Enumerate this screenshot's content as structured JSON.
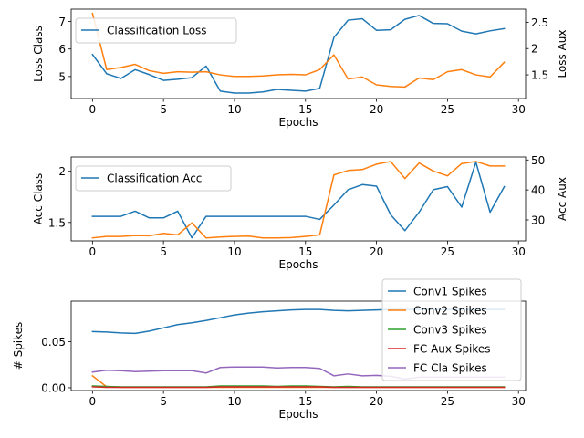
{
  "chart_data": [
    {
      "type": "line",
      "xlabel": "Epochs",
      "ylabel": "Loss Class",
      "ylabel_right": "Loss Aux",
      "xlim": [
        -1.5,
        30.5
      ],
      "ylim": [
        4.2,
        7.45
      ],
      "ylim_right": [
        1.05,
        2.75
      ],
      "xticks": [
        0,
        5,
        10,
        15,
        20,
        25,
        30
      ],
      "yticks": [
        5,
        6,
        7
      ],
      "yticks_right": [
        1.5,
        2.0,
        2.5
      ],
      "legend": "upper-left",
      "grid": false,
      "series": [
        {
          "name": "Classification Loss",
          "axis": "left",
          "color": "#1f77b4",
          "x": [
            0,
            1,
            2,
            3,
            4,
            5,
            6,
            7,
            8,
            9,
            10,
            11,
            12,
            13,
            14,
            15,
            16,
            17,
            18,
            19,
            20,
            21,
            22,
            23,
            24,
            25,
            26,
            27,
            28,
            29
          ],
          "values": [
            5.8,
            5.1,
            4.93,
            5.25,
            5.07,
            4.86,
            4.9,
            4.96,
            5.38,
            4.47,
            4.4,
            4.4,
            4.44,
            4.53,
            4.5,
            4.47,
            4.57,
            6.42,
            7.05,
            7.1,
            6.68,
            6.7,
            7.08,
            7.22,
            6.93,
            6.92,
            6.65,
            6.55,
            6.66,
            6.74
          ]
        },
        {
          "name": "",
          "axis": "right",
          "color": "#ff7f0e",
          "x": [
            0,
            1,
            2,
            3,
            4,
            5,
            6,
            7,
            8,
            9,
            10,
            11,
            12,
            13,
            14,
            15,
            16,
            17,
            18,
            19,
            20,
            21,
            22,
            23,
            24,
            25,
            26,
            27,
            28,
            29
          ],
          "values": [
            2.67,
            1.6,
            1.64,
            1.7,
            1.58,
            1.53,
            1.56,
            1.55,
            1.56,
            1.5,
            1.47,
            1.47,
            1.48,
            1.5,
            1.51,
            1.5,
            1.6,
            1.88,
            1.42,
            1.46,
            1.31,
            1.28,
            1.27,
            1.44,
            1.41,
            1.56,
            1.6,
            1.5,
            1.46,
            1.74
          ]
        }
      ]
    },
    {
      "type": "line",
      "xlabel": "Epochs",
      "ylabel": "Acc Class",
      "ylabel_right": "Acc Aux",
      "xlim": [
        -1.5,
        30.5
      ],
      "ylim": [
        1.32,
        2.14
      ],
      "ylim_right": [
        23,
        51
      ],
      "xticks": [
        0,
        5,
        10,
        15,
        20,
        25,
        30
      ],
      "yticks": [
        1.5,
        2.0
      ],
      "yticks_right": [
        30,
        40,
        50
      ],
      "legend": "upper-left",
      "grid": false,
      "series": [
        {
          "name": "Classification Acc",
          "axis": "left",
          "color": "#1f77b4",
          "x": [
            0,
            1,
            2,
            3,
            4,
            5,
            6,
            7,
            8,
            9,
            10,
            11,
            12,
            13,
            14,
            15,
            16,
            17,
            18,
            19,
            20,
            21,
            22,
            23,
            24,
            25,
            26,
            27,
            28,
            29
          ],
          "values": [
            1.56,
            1.56,
            1.56,
            1.61,
            1.545,
            1.545,
            1.61,
            1.35,
            1.56,
            1.56,
            1.56,
            1.56,
            1.56,
            1.56,
            1.56,
            1.56,
            1.53,
            1.67,
            1.82,
            1.87,
            1.855,
            1.575,
            1.42,
            1.6,
            1.82,
            1.85,
            1.65,
            2.09,
            1.6,
            1.85
          ]
        },
        {
          "name": "",
          "axis": "right",
          "color": "#ff7f0e",
          "x": [
            0,
            1,
            2,
            3,
            4,
            5,
            6,
            7,
            8,
            9,
            10,
            11,
            12,
            13,
            14,
            15,
            16,
            17,
            18,
            19,
            20,
            21,
            22,
            23,
            24,
            25,
            26,
            27,
            28,
            29
          ],
          "values": [
            24,
            24.5,
            24.5,
            24.8,
            24.7,
            25.5,
            25,
            29,
            24,
            24.3,
            24.5,
            24.6,
            24,
            24,
            24.1,
            24.5,
            25,
            45,
            46.5,
            46.8,
            48.6,
            49.5,
            43.8,
            49,
            46.3,
            44.7,
            48.8,
            49.5,
            48,
            48
          ]
        }
      ]
    },
    {
      "type": "line",
      "xlabel": "Epochs",
      "ylabel": "# Spikes",
      "xlim": [
        -1.5,
        30.5
      ],
      "ylim": [
        -0.003,
        0.094
      ],
      "xticks": [
        0,
        5,
        10,
        15,
        20,
        25,
        30
      ],
      "yticks": [
        0.0,
        0.05
      ],
      "ytick_labels": [
        "0.00",
        "0.05"
      ],
      "legend": "upper-right",
      "grid": false,
      "series": [
        {
          "name": "Conv1 Spikes",
          "color": "#1f77b4",
          "x": [
            0,
            1,
            2,
            3,
            4,
            5,
            6,
            7,
            8,
            9,
            10,
            11,
            12,
            13,
            14,
            15,
            16,
            17,
            18,
            19,
            20,
            21,
            22,
            23,
            24,
            25,
            26,
            27,
            28,
            29
          ],
          "values": [
            0.061,
            0.0605,
            0.0595,
            0.059,
            0.0615,
            0.065,
            0.0685,
            0.0705,
            0.073,
            0.076,
            0.079,
            0.081,
            0.0825,
            0.0835,
            0.0845,
            0.085,
            0.085,
            0.084,
            0.0835,
            0.084,
            0.0845,
            0.085,
            0.085,
            0.085,
            0.085,
            0.085,
            0.085,
            0.085,
            0.085,
            0.085
          ]
        },
        {
          "name": "Conv2 Spikes",
          "color": "#ff7f0e",
          "x": [
            0,
            1,
            2,
            3,
            4,
            5,
            6,
            7,
            8,
            9,
            10,
            11,
            12,
            13,
            14,
            15,
            16,
            17,
            18,
            19,
            20,
            21,
            22,
            23,
            24,
            25,
            26,
            27,
            28,
            29
          ],
          "values": [
            0.013,
            0.001,
            0.0005,
            0.0005,
            0.0005,
            0.0005,
            0.0005,
            0.0005,
            0.0005,
            0.0005,
            0.0005,
            0.0005,
            0.0005,
            0.0005,
            0.0005,
            0.0005,
            0.0005,
            0.0005,
            0.0005,
            0.0005,
            0.0005,
            0.0005,
            0.0005,
            0.0005,
            0.0005,
            0.0005,
            0.0005,
            0.0005,
            0.0005,
            0.0005
          ]
        },
        {
          "name": "Conv3 Spikes",
          "color": "#2ca02c",
          "x": [
            0,
            1,
            2,
            3,
            4,
            5,
            6,
            7,
            8,
            9,
            10,
            11,
            12,
            13,
            14,
            15,
            16,
            17,
            18,
            19,
            20,
            21,
            22,
            23,
            24,
            25,
            26,
            27,
            28,
            29
          ],
          "values": [
            0.002,
            0.0015,
            0.001,
            0.001,
            0.001,
            0.001,
            0.001,
            0.001,
            0.001,
            0.002,
            0.002,
            0.002,
            0.002,
            0.0015,
            0.002,
            0.002,
            0.0015,
            0.001,
            0.0015,
            0.001,
            0.001,
            0.001,
            0.001,
            0.001,
            0.001,
            0.001,
            0.001,
            0.001,
            0.001,
            0.001
          ]
        },
        {
          "name": "FC Aux Spikes",
          "color": "#d62728",
          "x": [
            0,
            1,
            2,
            3,
            4,
            5,
            6,
            7,
            8,
            9,
            10,
            11,
            12,
            13,
            14,
            15,
            16,
            17,
            18,
            19,
            20,
            21,
            22,
            23,
            24,
            25,
            26,
            27,
            28,
            29
          ],
          "values": [
            0.001,
            0.0005,
            0.0005,
            0.0005,
            0.0005,
            0.0005,
            0.0005,
            0.0005,
            0.0005,
            0.001,
            0.001,
            0.001,
            0.001,
            0.001,
            0.001,
            0.001,
            0.001,
            0.0005,
            0.0005,
            0.0005,
            0.0005,
            0.0005,
            0.0005,
            0.0005,
            0.0005,
            0.0005,
            0.0005,
            0.0005,
            0.0005,
            0.0005
          ]
        },
        {
          "name": "FC Cla Spikes",
          "color": "#9467bd",
          "x": [
            0,
            1,
            2,
            3,
            4,
            5,
            6,
            7,
            8,
            9,
            10,
            11,
            12,
            13,
            14,
            15,
            16,
            17,
            18,
            19,
            20,
            21,
            22,
            23,
            24,
            25,
            26,
            27,
            28,
            29
          ],
          "values": [
            0.017,
            0.019,
            0.0185,
            0.0175,
            0.018,
            0.0185,
            0.0185,
            0.0185,
            0.016,
            0.022,
            0.0225,
            0.0225,
            0.0225,
            0.0215,
            0.022,
            0.022,
            0.021,
            0.013,
            0.015,
            0.013,
            0.0135,
            0.0125,
            0.0095,
            0.0115,
            0.0115,
            0.0115,
            0.0115,
            0.0115,
            0.0115,
            0.0115
          ]
        }
      ]
    }
  ]
}
